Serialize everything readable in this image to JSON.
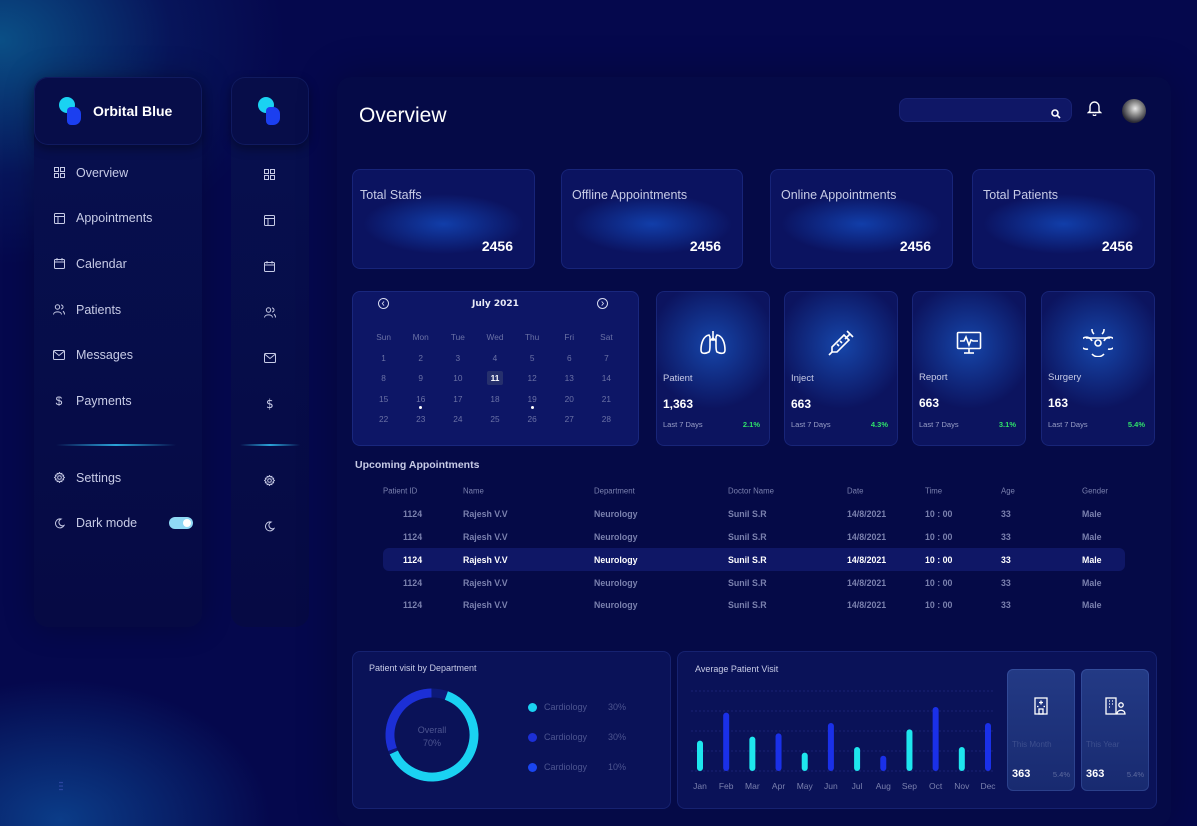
{
  "brand": {
    "name": "Orbital Blue"
  },
  "sidebar": {
    "items": [
      {
        "label": "Overview",
        "icon": "grid-icon"
      },
      {
        "label": "Appointments",
        "icon": "layout-icon"
      },
      {
        "label": "Calendar",
        "icon": "calendar-icon"
      },
      {
        "label": "Patients",
        "icon": "users-icon"
      },
      {
        "label": "Messages",
        "icon": "mail-icon"
      },
      {
        "label": "Payments",
        "icon": "dollar-icon"
      }
    ],
    "settings_label": "Settings",
    "dark_mode_label": "Dark mode",
    "dark_mode_on": true
  },
  "header": {
    "title": "Overview",
    "search_placeholder": ""
  },
  "stats": [
    {
      "label": "Total Staffs",
      "value": "2456"
    },
    {
      "label": "Offline Appointments",
      "value": "2456"
    },
    {
      "label": "Online Appointments",
      "value": "2456"
    },
    {
      "label": "Total Patients",
      "value": "2456"
    }
  ],
  "calendar": {
    "month": "July 2021",
    "weekdays": [
      "Sun",
      "Mon",
      "Tue",
      "Wed",
      "Thu",
      "Fri",
      "Sat"
    ],
    "weeks": [
      [
        "1",
        "2",
        "3",
        "4",
        "5",
        "6",
        "7"
      ],
      [
        "8",
        "9",
        "10",
        "11",
        "12",
        "13",
        "14"
      ],
      [
        "15",
        "16",
        "17",
        "18",
        "19",
        "20",
        "21"
      ],
      [
        "22",
        "23",
        "24",
        "25",
        "26",
        "27",
        "28"
      ]
    ],
    "selected": "11",
    "marked": [
      "16",
      "19"
    ]
  },
  "metrics": [
    {
      "title": "Patient",
      "value": "1,363",
      "period": "Last 7 Days",
      "change": "2.1%",
      "icon": "lungs-icon"
    },
    {
      "title": "Inject",
      "value": "663",
      "period": "Last 7 Days",
      "change": "4.3%",
      "icon": "syringe-icon"
    },
    {
      "title": "Report",
      "value": "663",
      "period": "Last 7 Days",
      "change": "3.1%",
      "icon": "monitor-pulse-icon"
    },
    {
      "title": "Surgery",
      "value": "163",
      "period": "Last 7 Days",
      "change": "5.4%",
      "icon": "biohazard-icon"
    }
  ],
  "appointments": {
    "title": "Upcoming Appointments",
    "columns": [
      "Patient ID",
      "Name",
      "Department",
      "Doctor Name",
      "Date",
      "Time",
      "Age",
      "Gender"
    ],
    "rows": [
      [
        "1124",
        "Rajesh V.V",
        "Neurology",
        "Sunil S.R",
        "14/8/2021",
        "10 : 00",
        "33",
        "Male"
      ],
      [
        "1124",
        "Rajesh V.V",
        "Neurology",
        "Sunil S.R",
        "14/8/2021",
        "10 : 00",
        "33",
        "Male"
      ],
      [
        "1124",
        "Rajesh V.V",
        "Neurology",
        "Sunil S.R",
        "14/8/2021",
        "10 : 00",
        "33",
        "Male"
      ],
      [
        "1124",
        "Rajesh V.V",
        "Neurology",
        "Sunil S.R",
        "14/8/2021",
        "10 : 00",
        "33",
        "Male"
      ],
      [
        "1124",
        "Rajesh V.V",
        "Neurology",
        "Sunil S.R",
        "14/8/2021",
        "10 : 00",
        "33",
        "Male"
      ]
    ],
    "highlighted_row": 2
  },
  "department": {
    "title": "Patient visit by Department",
    "center_label": "Overall",
    "center_value": "70%",
    "legend": [
      {
        "label": "Cardiology",
        "value": "30%",
        "color": "#1ad2f2"
      },
      {
        "label": "Cardiology",
        "value": "30%",
        "color": "#1c2fd6"
      },
      {
        "label": "Cardiology",
        "value": "10%",
        "color": "#1a45f0"
      }
    ]
  },
  "chart_data": {
    "type": "bar",
    "title": "Average Patient Visit",
    "categories": [
      "Jan",
      "Feb",
      "Mar",
      "Apr",
      "May",
      "Jun",
      "Jul",
      "Aug",
      "Sep",
      "Oct",
      "Nov",
      "Dec"
    ],
    "values": [
      38,
      73,
      43,
      47,
      23,
      60,
      30,
      19,
      52,
      80,
      30,
      60
    ],
    "colors": [
      "#1ee6ee",
      "#1a30e8",
      "#1ee6ee",
      "#1a30e8",
      "#1ee6ee",
      "#1a30e8",
      "#1ee6ee",
      "#1a30e8",
      "#1ee6ee",
      "#1a30e8",
      "#1ee6ee",
      "#1a30e8"
    ],
    "ylim": [
      0,
      100
    ],
    "grid": true,
    "xlabel": "",
    "ylabel": ""
  },
  "summary": [
    {
      "label": "This Month",
      "value": "363",
      "change": "5.4%",
      "icon": "hospital-icon"
    },
    {
      "label": "This Year",
      "value": "363",
      "change": "5.4%",
      "icon": "building-person-icon"
    }
  ]
}
